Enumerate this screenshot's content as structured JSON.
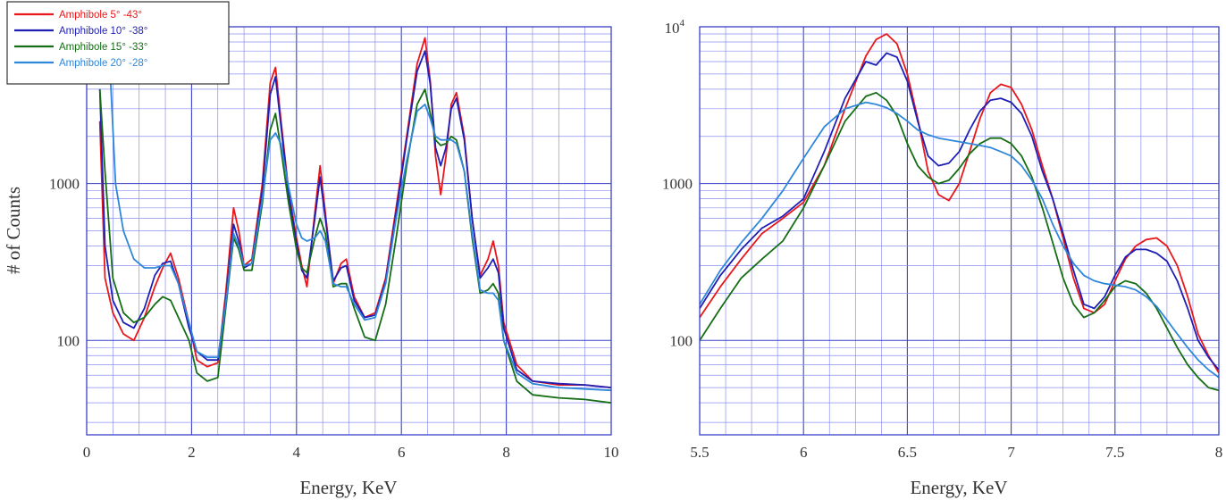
{
  "chart_data": [
    {
      "type": "line",
      "id": "left-panel",
      "title": "",
      "xlabel": "Energy, KeV",
      "ylabel": "# of Counts",
      "xlim": [
        0,
        10
      ],
      "ylim": [
        25,
        10000
      ],
      "yscale": "log",
      "grid": true,
      "legend": "top-left",
      "x_ticks": [
        "0",
        "2",
        "4",
        "6",
        "8",
        "10"
      ],
      "y_ticks": [
        "100",
        "1000"
      ],
      "series": [
        {
          "name": "Amphibole 5° -43°",
          "color": "#e8171b",
          "x": [
            0.25,
            0.35,
            0.5,
            0.7,
            0.9,
            1.1,
            1.3,
            1.45,
            1.6,
            1.75,
            1.95,
            2.1,
            2.3,
            2.5,
            2.65,
            2.8,
            2.9,
            3.0,
            3.15,
            3.35,
            3.5,
            3.6,
            3.7,
            3.85,
            4.0,
            4.1,
            4.2,
            4.35,
            4.45,
            4.55,
            4.7,
            4.85,
            4.95,
            5.1,
            5.3,
            5.5,
            5.7,
            5.9,
            6.1,
            6.3,
            6.45,
            6.55,
            6.65,
            6.75,
            6.85,
            6.95,
            7.05,
            7.2,
            7.35,
            7.5,
            7.65,
            7.75,
            7.85,
            7.95,
            8.2,
            8.5,
            9.0,
            9.5,
            10.0
          ],
          "y": [
            2500,
            250,
            150,
            110,
            100,
            140,
            220,
            290,
            360,
            250,
            130,
            75,
            68,
            72,
            200,
            700,
            500,
            300,
            330,
            1000,
            4400,
            5500,
            2600,
            900,
            450,
            300,
            220,
            650,
            1300,
            650,
            230,
            310,
            330,
            190,
            140,
            150,
            250,
            700,
            2000,
            5800,
            8500,
            4500,
            1500,
            850,
            1500,
            3200,
            3800,
            2000,
            600,
            260,
            330,
            430,
            300,
            130,
            70,
            55,
            52,
            52,
            50
          ]
        },
        {
          "name": "Amphibole 10° -38°",
          "color": "#1f1fb5",
          "x": [
            0.25,
            0.35,
            0.5,
            0.7,
            0.9,
            1.1,
            1.3,
            1.45,
            1.6,
            1.75,
            1.95,
            2.1,
            2.3,
            2.5,
            2.65,
            2.8,
            2.9,
            3.0,
            3.15,
            3.35,
            3.5,
            3.6,
            3.7,
            3.85,
            4.0,
            4.1,
            4.2,
            4.35,
            4.45,
            4.55,
            4.7,
            4.85,
            4.95,
            5.1,
            5.3,
            5.5,
            5.7,
            5.9,
            6.1,
            6.3,
            6.45,
            6.55,
            6.65,
            6.75,
            6.85,
            6.95,
            7.05,
            7.2,
            7.35,
            7.5,
            7.65,
            7.75,
            7.85,
            7.95,
            8.2,
            8.5,
            9.0,
            9.5,
            10.0
          ],
          "y": [
            4000,
            400,
            180,
            130,
            120,
            160,
            260,
            310,
            320,
            230,
            120,
            85,
            75,
            75,
            180,
            550,
            430,
            290,
            310,
            900,
            3700,
            4800,
            2400,
            850,
            420,
            280,
            250,
            600,
            1100,
            600,
            240,
            290,
            300,
            180,
            140,
            145,
            240,
            650,
            1900,
            5200,
            7000,
            4300,
            1700,
            1300,
            1700,
            3000,
            3500,
            1900,
            600,
            250,
            290,
            330,
            270,
            120,
            65,
            55,
            53,
            52,
            50
          ]
        },
        {
          "name": "Amphibole 15° -33°",
          "color": "#156e15",
          "x": [
            0.25,
            0.35,
            0.5,
            0.7,
            0.9,
            1.1,
            1.3,
            1.45,
            1.6,
            1.75,
            1.95,
            2.1,
            2.3,
            2.5,
            2.65,
            2.8,
            2.9,
            3.0,
            3.15,
            3.35,
            3.5,
            3.6,
            3.7,
            3.85,
            4.0,
            4.1,
            4.2,
            4.35,
            4.45,
            4.55,
            4.7,
            4.85,
            4.95,
            5.1,
            5.3,
            5.5,
            5.7,
            5.9,
            6.1,
            6.3,
            6.45,
            6.55,
            6.65,
            6.75,
            6.85,
            6.95,
            7.05,
            7.2,
            7.35,
            7.5,
            7.65,
            7.75,
            7.85,
            7.95,
            8.2,
            8.5,
            9.0,
            9.5,
            10.0
          ],
          "y": [
            4000,
            1200,
            250,
            150,
            130,
            140,
            170,
            190,
            180,
            140,
            100,
            62,
            55,
            58,
            160,
            450,
            380,
            280,
            280,
            750,
            2200,
            2800,
            1700,
            750,
            380,
            290,
            270,
            450,
            600,
            480,
            220,
            230,
            230,
            160,
            105,
            100,
            170,
            450,
            1300,
            3200,
            4000,
            2800,
            1900,
            1750,
            1800,
            2000,
            1900,
            1200,
            450,
            200,
            210,
            230,
            200,
            100,
            55,
            45,
            43,
            42,
            40
          ]
        },
        {
          "name": "Amphibole 20° -28°",
          "color": "#2f87d9",
          "x": [
            0.35,
            0.45,
            0.55,
            0.7,
            0.9,
            1.1,
            1.3,
            1.45,
            1.6,
            1.75,
            1.95,
            2.1,
            2.3,
            2.5,
            2.65,
            2.8,
            2.9,
            3.0,
            3.15,
            3.35,
            3.5,
            3.6,
            3.7,
            3.85,
            4.0,
            4.1,
            4.2,
            4.35,
            4.45,
            4.55,
            4.7,
            4.85,
            4.95,
            5.1,
            5.3,
            5.5,
            5.7,
            5.9,
            6.1,
            6.3,
            6.45,
            6.55,
            6.65,
            6.75,
            6.85,
            6.95,
            7.05,
            7.2,
            7.35,
            7.5,
            7.65,
            7.75,
            7.85,
            7.95,
            8.2,
            8.5,
            9.0,
            9.5,
            10.0
          ],
          "y": [
            9000,
            5000,
            1000,
            500,
            330,
            290,
            290,
            300,
            300,
            230,
            130,
            85,
            78,
            78,
            170,
            480,
            400,
            300,
            310,
            800,
            1900,
            2100,
            1800,
            950,
            550,
            450,
            430,
            450,
            500,
            430,
            230,
            220,
            220,
            170,
            135,
            140,
            230,
            600,
            1400,
            2900,
            3200,
            2600,
            2000,
            1900,
            1900,
            1900,
            1800,
            1200,
            480,
            210,
            200,
            200,
            180,
            100,
            62,
            53,
            50,
            49,
            48
          ]
        }
      ]
    },
    {
      "type": "line",
      "id": "right-panel",
      "title": "",
      "xlabel": "Energy, KeV",
      "ylabel": "",
      "xlim": [
        5.5,
        8
      ],
      "ylim": [
        25,
        10000
      ],
      "yscale": "log",
      "grid": true,
      "legend": "none",
      "x_ticks": [
        "5.5",
        "6",
        "6.5",
        "7",
        "7.5",
        "8"
      ],
      "y_ticks": [
        "100",
        "1000"
      ],
      "y_top_tick_base": "10",
      "y_top_tick_exp": "4",
      "series": [
        {
          "name": "Amphibole 5° -43°",
          "color": "#e8171b",
          "x": [
            5.5,
            5.6,
            5.7,
            5.8,
            5.9,
            6.0,
            6.1,
            6.2,
            6.3,
            6.35,
            6.4,
            6.45,
            6.5,
            6.55,
            6.6,
            6.65,
            6.7,
            6.75,
            6.8,
            6.85,
            6.9,
            6.95,
            7.0,
            7.05,
            7.1,
            7.15,
            7.2,
            7.25,
            7.3,
            7.35,
            7.4,
            7.45,
            7.5,
            7.55,
            7.6,
            7.65,
            7.7,
            7.75,
            7.8,
            7.85,
            7.9,
            7.95,
            8.0
          ],
          "y": [
            140,
            220,
            330,
            480,
            600,
            760,
            1300,
            3000,
            6500,
            8300,
            9000,
            7800,
            5000,
            2600,
            1200,
            850,
            780,
            1000,
            1600,
            2600,
            3800,
            4300,
            4100,
            3200,
            2200,
            1300,
            800,
            450,
            250,
            160,
            150,
            170,
            240,
            330,
            400,
            440,
            450,
            400,
            300,
            190,
            110,
            80,
            62
          ]
        },
        {
          "name": "Amphibole 10° -38°",
          "color": "#1f1fb5",
          "x": [
            5.5,
            5.6,
            5.7,
            5.8,
            5.9,
            6.0,
            6.1,
            6.2,
            6.3,
            6.35,
            6.4,
            6.45,
            6.5,
            6.55,
            6.6,
            6.65,
            6.7,
            6.75,
            6.8,
            6.85,
            6.9,
            6.95,
            7.0,
            7.05,
            7.1,
            7.15,
            7.2,
            7.25,
            7.3,
            7.35,
            7.4,
            7.45,
            7.5,
            7.55,
            7.6,
            7.65,
            7.7,
            7.75,
            7.8,
            7.85,
            7.9,
            7.95,
            8.0
          ],
          "y": [
            160,
            260,
            380,
            520,
            620,
            800,
            1600,
            3500,
            6000,
            5700,
            6800,
            6400,
            4500,
            2500,
            1500,
            1300,
            1350,
            1600,
            2200,
            2900,
            3400,
            3500,
            3300,
            2800,
            2000,
            1200,
            800,
            480,
            280,
            170,
            160,
            190,
            260,
            340,
            380,
            380,
            360,
            320,
            240,
            160,
            100,
            78,
            65
          ]
        },
        {
          "name": "Amphibole 15° -33°",
          "color": "#156e15",
          "x": [
            5.5,
            5.6,
            5.7,
            5.8,
            5.9,
            6.0,
            6.1,
            6.2,
            6.3,
            6.35,
            6.4,
            6.45,
            6.5,
            6.55,
            6.6,
            6.65,
            6.7,
            6.75,
            6.8,
            6.85,
            6.9,
            6.95,
            7.0,
            7.05,
            7.1,
            7.15,
            7.2,
            7.25,
            7.3,
            7.35,
            7.4,
            7.45,
            7.5,
            7.55,
            7.6,
            7.65,
            7.7,
            7.75,
            7.8,
            7.85,
            7.9,
            7.95,
            8.0
          ],
          "y": [
            100,
            160,
            250,
            330,
            430,
            700,
            1300,
            2500,
            3600,
            3800,
            3400,
            2700,
            1800,
            1300,
            1100,
            1000,
            1050,
            1250,
            1550,
            1800,
            1950,
            1950,
            1800,
            1500,
            1100,
            700,
            420,
            250,
            170,
            140,
            150,
            180,
            220,
            240,
            230,
            200,
            160,
            120,
            90,
            70,
            58,
            50,
            48
          ]
        },
        {
          "name": "Amphibole 20° -28°",
          "color": "#2f87d9",
          "x": [
            5.5,
            5.6,
            5.7,
            5.8,
            5.9,
            6.0,
            6.1,
            6.2,
            6.3,
            6.35,
            6.4,
            6.45,
            6.5,
            6.55,
            6.6,
            6.65,
            6.7,
            6.75,
            6.8,
            6.85,
            6.9,
            6.95,
            7.0,
            7.05,
            7.1,
            7.15,
            7.2,
            7.25,
            7.3,
            7.35,
            7.4,
            7.45,
            7.5,
            7.55,
            7.6,
            7.65,
            7.7,
            7.75,
            7.8,
            7.85,
            7.9,
            7.95,
            8.0
          ],
          "y": [
            170,
            280,
            420,
            600,
            900,
            1450,
            2300,
            3000,
            3300,
            3200,
            3050,
            2800,
            2500,
            2200,
            2050,
            1950,
            1900,
            1850,
            1800,
            1750,
            1700,
            1600,
            1500,
            1300,
            1050,
            800,
            550,
            400,
            310,
            260,
            240,
            230,
            225,
            220,
            210,
            190,
            165,
            135,
            110,
            90,
            75,
            65,
            58
          ]
        }
      ]
    }
  ]
}
